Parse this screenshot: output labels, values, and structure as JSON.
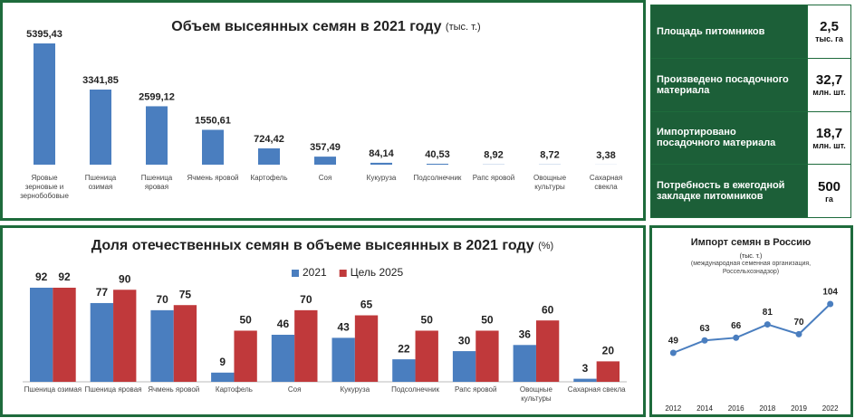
{
  "chart_data": [
    {
      "type": "bar",
      "title": "Объем высеянных семян в 2021 году",
      "subtitle": "(тыс. т.)",
      "categories": [
        "Яровые зерновые и зернобобовые",
        "Пшеница озимая",
        "Пшеница яровая",
        "Ячмень яровой",
        "Картофель",
        "Соя",
        "Кукуруза",
        "Подсолнечник",
        "Рапс яровой",
        "Овощные культуры",
        "Сахарная свекла"
      ],
      "values": [
        5395.43,
        3341.85,
        2599.12,
        1550.61,
        724.42,
        357.49,
        84.14,
        40.53,
        8.92,
        8.72,
        3.38
      ],
      "value_labels": [
        "5395,43",
        "3341,85",
        "2599,12",
        "1550,61",
        "724,42",
        "357,49",
        "84,14",
        "40,53",
        "8,92",
        "8,72",
        "3,38"
      ],
      "color": "#4a7ebf"
    },
    {
      "type": "grouped_bar",
      "title": "Доля отечественных семян в объеме высеянных в 2021 году",
      "subtitle": "(%)",
      "categories": [
        "Пшеница озимая",
        "Пшеница яровая",
        "Ячмень яровой",
        "Картофель",
        "Соя",
        "Кукуруза",
        "Подсолнечник",
        "Рапс яровой",
        "Овощные культуры",
        "Сахарная свекла"
      ],
      "series": [
        {
          "name": "2021",
          "color": "#4a7ebf",
          "values": [
            92,
            77,
            70,
            9,
            46,
            43,
            22,
            30,
            36,
            3
          ]
        },
        {
          "name": "Цель 2025",
          "color": "#c0393b",
          "values": [
            92,
            90,
            75,
            50,
            70,
            65,
            50,
            50,
            60,
            20
          ]
        }
      ],
      "legend": "top"
    },
    {
      "type": "line",
      "title": "Импорт семян в Россию",
      "subtitle": "(тыс. т.)",
      "note": "(международная семенная организация, Россельхознадзор)",
      "categories": [
        "2012",
        "2014",
        "2016",
        "2018",
        "2019",
        "2022"
      ],
      "values": [
        49,
        63,
        66,
        81,
        70,
        104
      ],
      "color": "#4a7ebf"
    }
  ],
  "stats": {
    "rows": [
      [
        "Площадь питомников",
        "2,5",
        "тыс. га"
      ],
      [
        "Произведено посадочного материала",
        "32,7",
        "млн. шт."
      ],
      [
        "Импортировано посадочного материала",
        "18,7",
        "млн. шт."
      ],
      [
        "Потребность в ежегодной закладке питомников",
        "500",
        "га"
      ]
    ]
  }
}
